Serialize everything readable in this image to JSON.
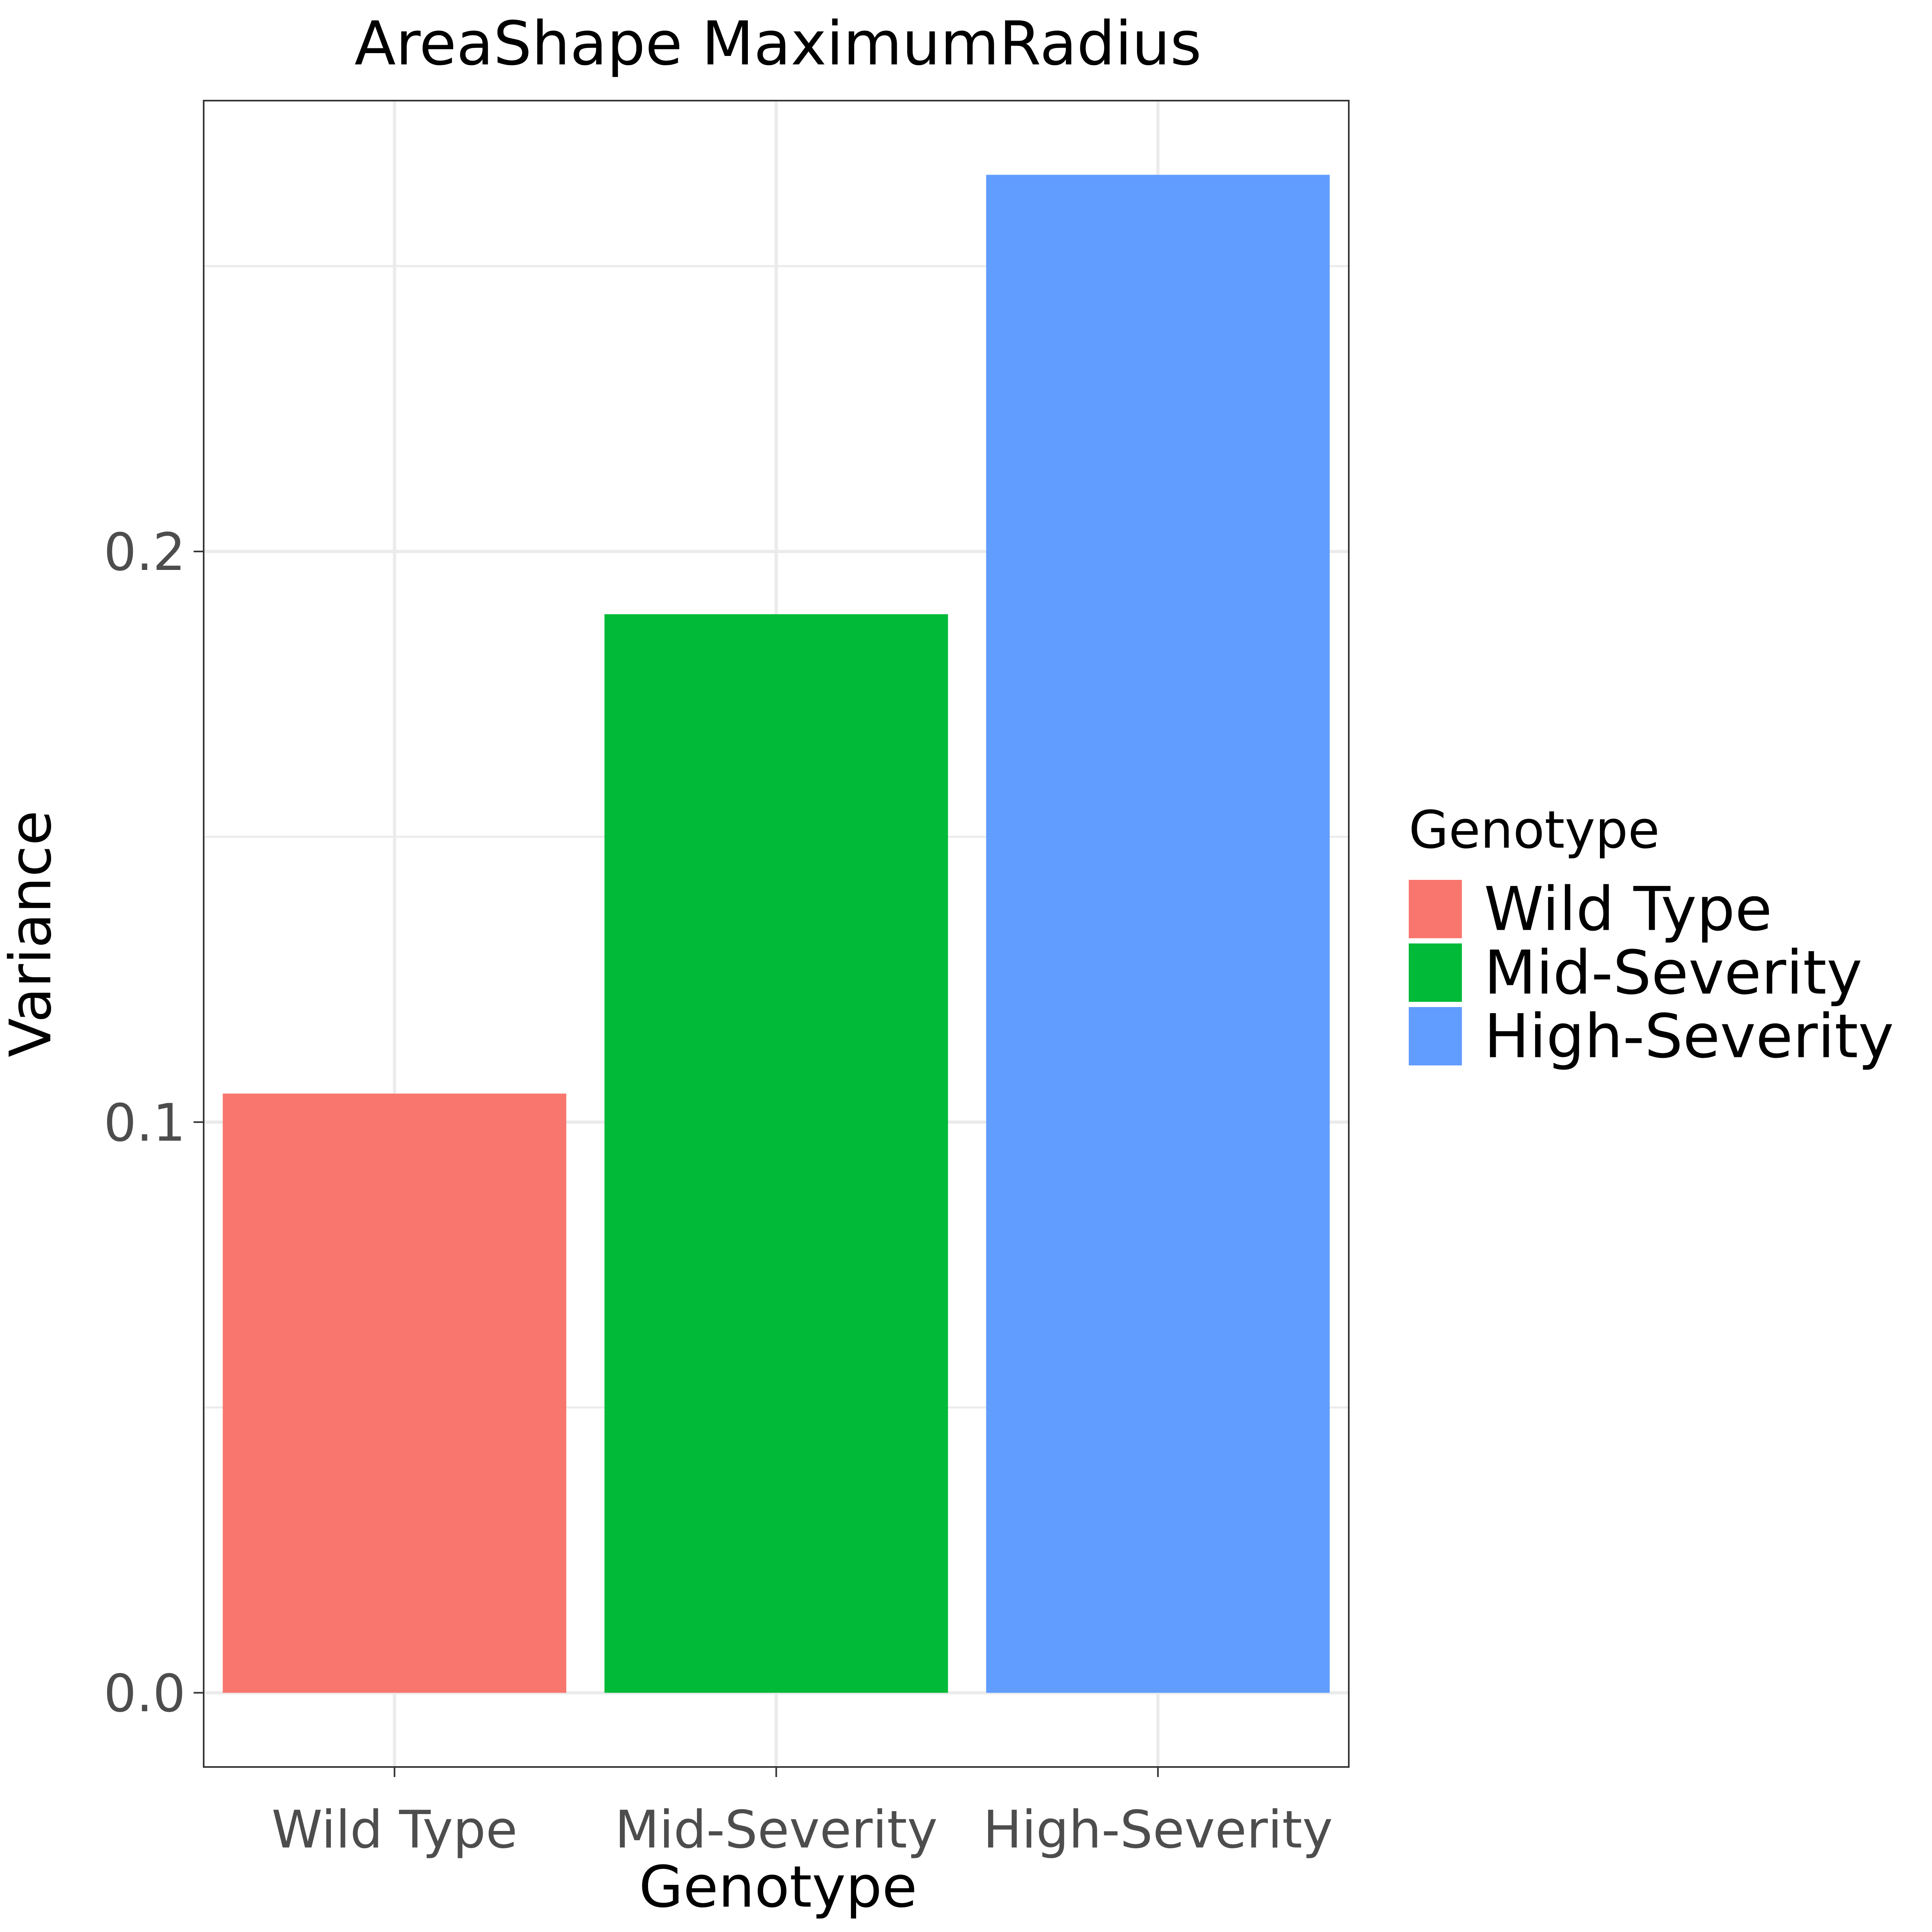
{
  "chart_data": {
    "type": "bar",
    "title": "AreaShape MaximumRadius",
    "xlabel": "Genotype",
    "ylabel": "Variance",
    "categories": [
      "Wild Type",
      "Mid-Severity",
      "High-Severity"
    ],
    "values": [
      0.105,
      0.189,
      0.266
    ],
    "colors": [
      "#F8766D",
      "#00BA38",
      "#619CFF"
    ],
    "ylim": [
      -0.013,
      0.279
    ],
    "yticks": [
      0.0,
      0.1,
      0.2
    ],
    "ytick_labels": [
      "0.0",
      "0.1",
      "0.2"
    ],
    "grid": true,
    "legend": {
      "title": "Genotype",
      "placement": "right",
      "entries": [
        "Wild Type",
        "Mid-Severity",
        "High-Severity"
      ]
    }
  }
}
